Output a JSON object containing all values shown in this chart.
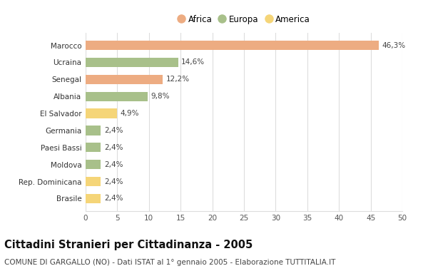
{
  "categories": [
    "Marocco",
    "Ucraina",
    "Senegal",
    "Albania",
    "El Salvador",
    "Germania",
    "Paesi Bassi",
    "Moldova",
    "Rep. Dominicana",
    "Brasile"
  ],
  "values": [
    46.3,
    14.6,
    12.2,
    9.8,
    4.9,
    2.4,
    2.4,
    2.4,
    2.4,
    2.4
  ],
  "labels": [
    "46,3%",
    "14,6%",
    "12,2%",
    "9,8%",
    "4,9%",
    "2,4%",
    "2,4%",
    "2,4%",
    "2,4%",
    "2,4%"
  ],
  "colors": [
    "#EDAC82",
    "#A8C08A",
    "#EDAC82",
    "#A8C08A",
    "#F5D578",
    "#A8C08A",
    "#A8C08A",
    "#A8C08A",
    "#F5D578",
    "#F5D578"
  ],
  "legend_labels": [
    "Africa",
    "Europa",
    "America"
  ],
  "legend_colors": [
    "#EDAC82",
    "#A8C08A",
    "#F5D578"
  ],
  "title": "Cittadini Stranieri per Cittadinanza - 2005",
  "subtitle": "COMUNE DI GARGALLO (NO) - Dati ISTAT al 1° gennaio 2005 - Elaborazione TUTTITALIA.IT",
  "xlim": [
    0,
    50
  ],
  "xticks": [
    0,
    5,
    10,
    15,
    20,
    25,
    30,
    35,
    40,
    45,
    50
  ],
  "bg_color": "#FFFFFF",
  "grid_color": "#DDDDDD",
  "bar_height": 0.55,
  "title_fontsize": 10.5,
  "subtitle_fontsize": 7.5,
  "tick_fontsize": 7.5,
  "label_fontsize": 7.5,
  "legend_fontsize": 8.5
}
